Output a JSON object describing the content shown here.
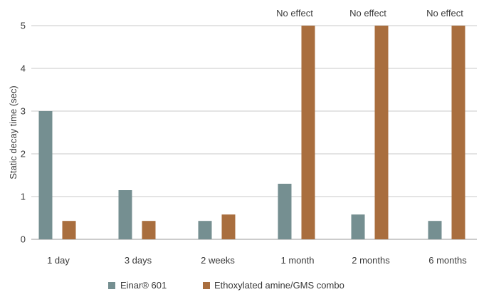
{
  "chart_data": {
    "type": "bar",
    "title": "",
    "xlabel": "",
    "ylabel": "Static decay time (sec)",
    "ylim": [
      0,
      5
    ],
    "yticks": [
      "0",
      "1",
      "2",
      "3",
      "4",
      "5"
    ],
    "grid": true,
    "legend_position": "bottom-center",
    "categories": [
      "1 day",
      "3 days",
      "2 weeks",
      "1 month",
      "2 months",
      "6 months"
    ],
    "series": [
      {
        "name": "Einar® 601",
        "color": "#758f91",
        "values": [
          3.0,
          1.15,
          0.43,
          1.3,
          0.58,
          0.43
        ]
      },
      {
        "name": "Ethoxylated amine/GMS combo",
        "color": "#a96e3e",
        "values": [
          0.43,
          0.43,
          0.58,
          5,
          5,
          5
        ]
      }
    ],
    "annotations": [
      {
        "category": "1 month",
        "text": "No effect"
      },
      {
        "category": "2 months",
        "text": "No effect"
      },
      {
        "category": "6 months",
        "text": "No effect"
      }
    ]
  }
}
